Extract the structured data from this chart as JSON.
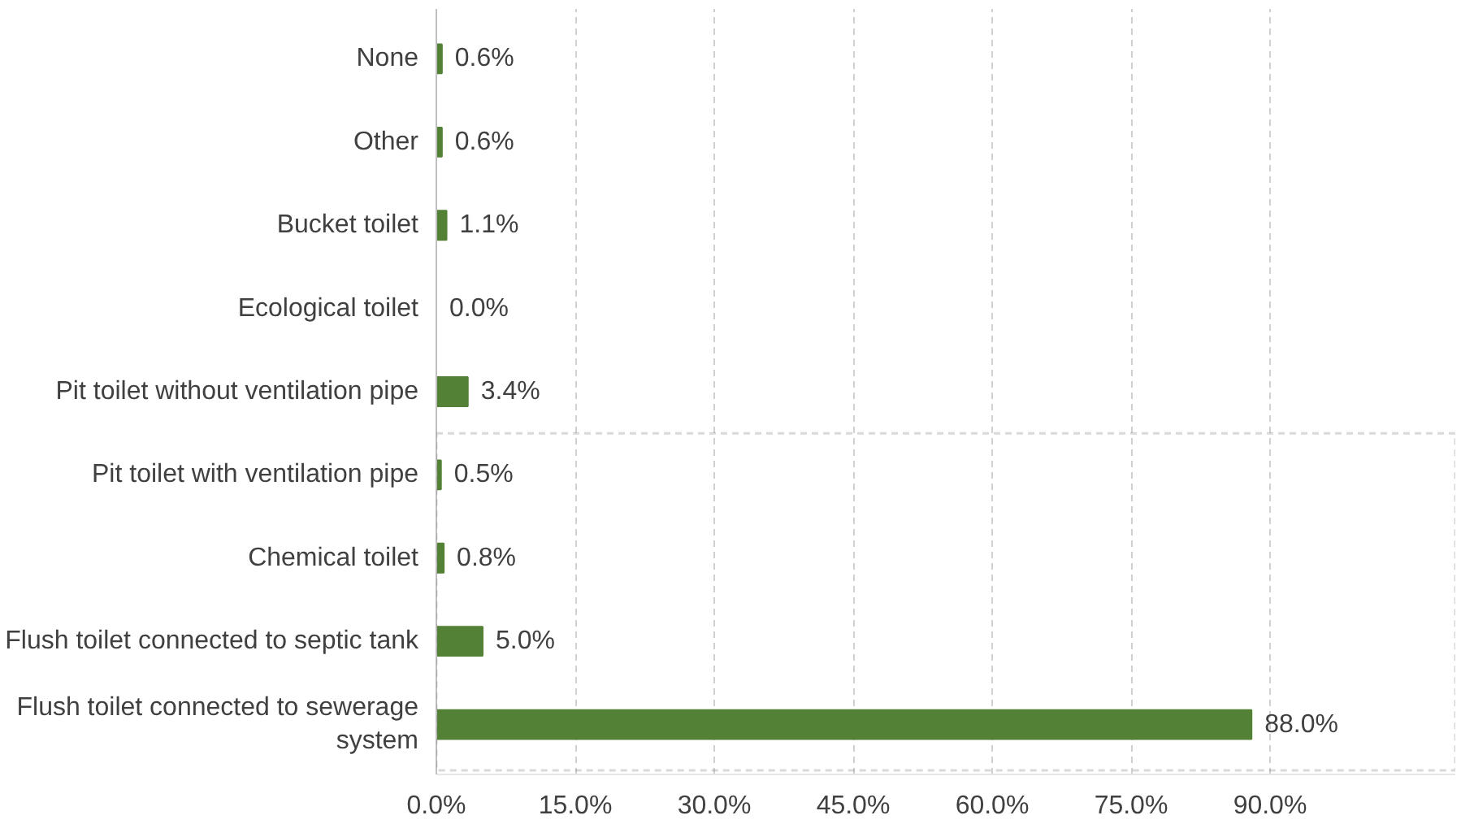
{
  "chart_data": {
    "type": "bar",
    "orientation": "horizontal",
    "categories": [
      "None",
      "Other",
      "Bucket toilet",
      "Ecological toilet",
      "Pit toilet without ventilation pipe",
      "Pit toilet with ventilation pipe",
      "Chemical toilet",
      "Flush toilet connected to septic tank",
      "Flush toilet connected to sewerage system"
    ],
    "values": [
      0.6,
      0.6,
      1.1,
      0.0,
      3.4,
      0.5,
      0.8,
      5.0,
      88.0
    ],
    "value_labels": [
      "0.6%",
      "0.6%",
      "1.1%",
      "0.0%",
      "3.4%",
      "0.5%",
      "0.8%",
      "5.0%",
      "88.0%"
    ],
    "color": "#538135",
    "xlim": [
      0,
      110
    ],
    "xticks": [
      {
        "value": 0,
        "label": "0.0%"
      },
      {
        "value": 15,
        "label": "15.0%"
      },
      {
        "value": 30,
        "label": "30.0%"
      },
      {
        "value": 45,
        "label": "45.0%"
      },
      {
        "value": 60,
        "label": "60.0%"
      },
      {
        "value": 75,
        "label": "75.0%"
      },
      {
        "value": 90,
        "label": "90.0%"
      }
    ],
    "grid": "x"
  }
}
